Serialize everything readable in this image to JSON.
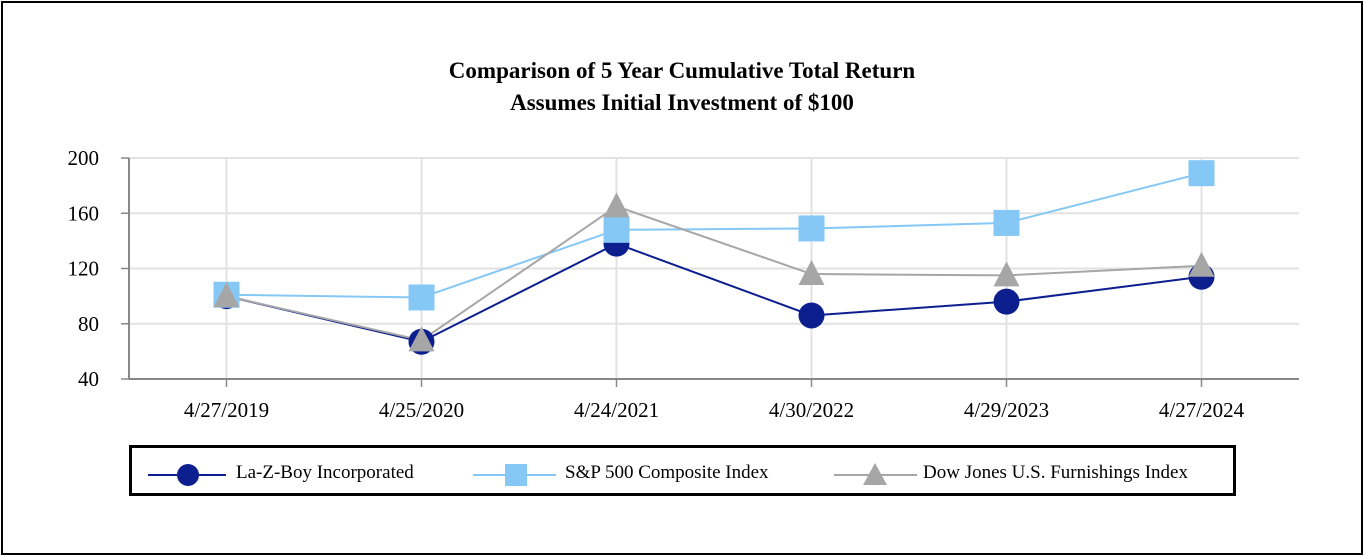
{
  "chart_data": {
    "type": "line",
    "title": "Comparison of 5 Year Cumulative Total Return",
    "subtitle": "Assumes Initial Investment of $100",
    "categories": [
      "4/27/2019",
      "4/25/2020",
      "4/24/2021",
      "4/30/2022",
      "4/29/2023",
      "4/27/2024"
    ],
    "y_ticks": [
      "200",
      "160",
      "120",
      "80",
      "40"
    ],
    "ylim": [
      40,
      200
    ],
    "grid": true,
    "legend_position": "bottom",
    "series": [
      {
        "name": "La-Z-Boy Incorporated",
        "marker": "circle",
        "color": "#0d1f8f",
        "values": [
          100,
          67,
          138,
          86,
          96,
          114
        ]
      },
      {
        "name": "S&P 500 Composite Index",
        "marker": "square",
        "color": "#85c8f5",
        "values": [
          101,
          99,
          148,
          149,
          153,
          189
        ]
      },
      {
        "name": "Dow Jones U.S. Furnishings Index",
        "marker": "triangle",
        "color": "#a6a6a6",
        "values": [
          100,
          68,
          165,
          116,
          115,
          122
        ]
      }
    ]
  }
}
